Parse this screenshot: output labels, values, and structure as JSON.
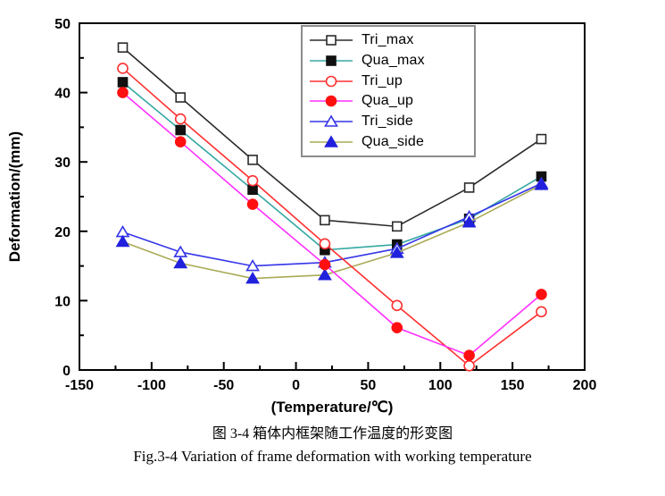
{
  "chart_data": {
    "type": "line",
    "xlabel": "(Temperature/℃)",
    "ylabel": "Deformation/(mm)",
    "xlim": [
      -150,
      200
    ],
    "ylim": [
      0,
      50
    ],
    "x_ticks": [
      -150,
      -100,
      -50,
      0,
      50,
      100,
      150,
      200
    ],
    "y_ticks": [
      0,
      10,
      20,
      30,
      40,
      50
    ],
    "x_minor_step": 25,
    "y_minor_step": 5,
    "grid": false,
    "legend_position": "inside-top-center",
    "x": [
      -120,
      -80,
      -30,
      20,
      70,
      120,
      170
    ],
    "series": [
      {
        "name": "Tri_max",
        "line_color": "#2b2b2b",
        "marker": "square",
        "marker_style": "open",
        "marker_color": "#2b2b2b",
        "values": [
          46.5,
          39.3,
          30.3,
          21.6,
          20.7,
          26.3,
          33.3
        ]
      },
      {
        "name": "Qua_max",
        "line_color": "#35a8a2",
        "marker": "square",
        "marker_style": "filled",
        "marker_color": "#111111",
        "values": [
          41.5,
          34.6,
          26.0,
          17.3,
          18.1,
          21.8,
          27.9
        ]
      },
      {
        "name": "Tri_up",
        "line_color": "#ff3030",
        "marker": "circle",
        "marker_style": "open",
        "marker_color": "#ff3030",
        "values": [
          43.5,
          36.2,
          27.3,
          18.2,
          9.3,
          0.6,
          8.4
        ]
      },
      {
        "name": "Qua_up",
        "line_color": "#ff30ff",
        "marker": "circle",
        "marker_style": "filled",
        "marker_color": "#ff1010",
        "values": [
          40.0,
          32.9,
          23.9,
          15.2,
          6.1,
          2.1,
          10.9
        ]
      },
      {
        "name": "Tri_side",
        "line_color": "#3535e8",
        "marker": "triangle",
        "marker_style": "open",
        "marker_color": "#3535e8",
        "values": [
          19.9,
          17.0,
          15.0,
          15.5,
          17.5,
          22.1,
          26.9
        ]
      },
      {
        "name": "Qua_side",
        "line_color": "#aaaa55",
        "marker": "triangle",
        "marker_style": "filled",
        "marker_color": "#2020dd",
        "values": [
          18.5,
          15.4,
          13.2,
          13.7,
          16.9,
          21.3,
          26.7
        ]
      }
    ]
  },
  "captions": {
    "zh": "图 3-4 箱体内框架随工作温度的形变图",
    "en": "Fig.3-4 Variation of frame deformation with working temperature"
  },
  "frame_color": "#000000",
  "background": "#ffffff"
}
